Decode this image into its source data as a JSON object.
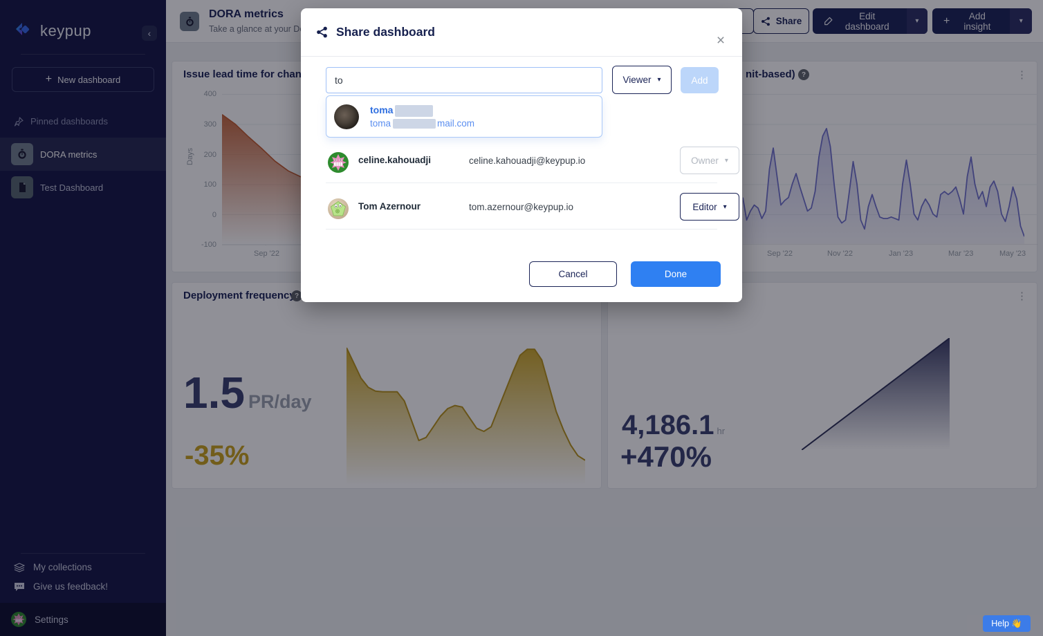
{
  "sidebar": {
    "logo_text": "keypup",
    "new_dashboard_label": "New dashboard",
    "pinned_header": "Pinned dashboards",
    "items": [
      {
        "label": "DORA metrics",
        "selected": true
      },
      {
        "label": "Test Dashboard",
        "selected": false
      }
    ],
    "footer": {
      "my_collections": "My collections",
      "feedback": "Give us feedback!",
      "settings": "Settings"
    }
  },
  "header": {
    "title": "DORA metrics",
    "subtitle": "Take a glance at your De",
    "share_label": "Share",
    "edit_label": "Edit dashboard",
    "add_insight_label": "Add insight"
  },
  "modal": {
    "title": "Share dashboard",
    "search_value": "to",
    "role_selected": "Viewer",
    "add_label": "Add",
    "suggestion": {
      "name_visible": "toma",
      "email_visible_prefix": "toma",
      "email_visible_suffix": "mail.com"
    },
    "members": [
      {
        "name": "celine.kahouadji",
        "email": "celine.kahouadji@keypup.io",
        "role": "Owner",
        "role_disabled": true
      },
      {
        "name": "Tom Azernour",
        "email": "tom.azernour@keypup.io",
        "role": "Editor",
        "role_disabled": false
      }
    ],
    "cancel_label": "Cancel",
    "done_label": "Done"
  },
  "help_button_label": "Help 👋",
  "icons": {
    "close": "×",
    "caret": "▾",
    "dots": "⋮",
    "plus": "+",
    "chevron_left": "‹",
    "help": "?"
  },
  "colors": {
    "sidebar_bg": "#141645",
    "navy": "#1a2356",
    "accent_blue": "#2f80f2",
    "disabled_add": "#bcd6fa",
    "link_blue": "#2f6fe0",
    "orange_series": "#bf5a2d",
    "purple_series": "#6f72cc",
    "gold_series": "#c9a21d",
    "navy_series": "#31355f",
    "gold_delta": "#c9a21d"
  },
  "chart_data": [
    {
      "id": "issue-lead-time",
      "type": "area",
      "title": "Issue lead time for change",
      "ylabel": "Days",
      "yticks": [
        "400",
        "300",
        "200",
        "100",
        "0",
        "-100"
      ],
      "ylim": [
        -100,
        400
      ],
      "xticks": [
        "Sep '22"
      ],
      "color": "#bf5a2d",
      "values": [
        332,
        300,
        258,
        219,
        177,
        145,
        124
      ]
    },
    {
      "id": "lead-time-commit",
      "type": "area",
      "title_fragment": "nit-based)",
      "xticks": [
        "Sep '22",
        "Nov '22",
        "Jan '23",
        "Mar '23",
        "May '23"
      ],
      "ylim": [
        0,
        100
      ],
      "color": "#6f72cc",
      "values": [
        31,
        16,
        22,
        26,
        24,
        17,
        22,
        50,
        64,
        45,
        26,
        29,
        31,
        40,
        47,
        38,
        30,
        22,
        24,
        35,
        58,
        72,
        77,
        65,
        40,
        18,
        14,
        16,
        35,
        55,
        40,
        16,
        10,
        25,
        33,
        25,
        18,
        17,
        17,
        18,
        17,
        16,
        40,
        56,
        40,
        20,
        16,
        25,
        30,
        26,
        20,
        18,
        33,
        35,
        33,
        35,
        38,
        30,
        20,
        45,
        58,
        40,
        30,
        35,
        25,
        38,
        42,
        35,
        20,
        15,
        25,
        38,
        30,
        12,
        5
      ]
    },
    {
      "id": "deployment-frequency",
      "type": "area",
      "title": "Deployment frequency",
      "value": "1.5",
      "unit": "PR/day",
      "delta": "-35%",
      "ylim": [
        0,
        100
      ],
      "color": "#c9a21d",
      "values": [
        90,
        80,
        70,
        64,
        61.5,
        61,
        61,
        61,
        55,
        42,
        29,
        31,
        38,
        45,
        50,
        52,
        51,
        44,
        37,
        35,
        38,
        50,
        62,
        74,
        85,
        89,
        89,
        82,
        65,
        48,
        36,
        26,
        19,
        16
      ]
    },
    {
      "id": "time-metric",
      "type": "area",
      "value": "4,186.1",
      "unit": "hr",
      "delta": "+470%",
      "ylim": [
        0,
        100
      ],
      "color": "#31355f",
      "values": [
        0,
        100
      ]
    }
  ]
}
